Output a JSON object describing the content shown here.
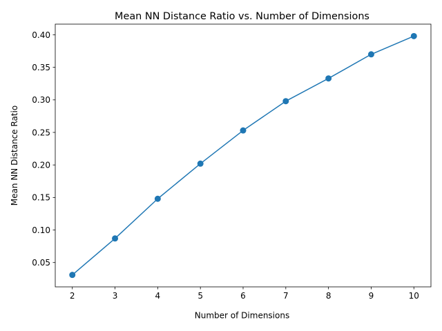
{
  "chart_data": {
    "type": "line",
    "title": "Mean NN Distance Ratio vs. Number of Dimensions",
    "xlabel": "Number of Dimensions",
    "ylabel": "Mean NN Distance Ratio",
    "x": [
      2,
      3,
      4,
      5,
      6,
      7,
      8,
      9,
      10
    ],
    "series": [
      {
        "values": [
          0.031,
          0.087,
          0.148,
          0.202,
          0.253,
          0.298,
          0.333,
          0.37,
          0.398
        ],
        "color": "#1f77b4",
        "marker": "circle"
      }
    ],
    "xticks": [
      "2",
      "3",
      "4",
      "5",
      "6",
      "7",
      "8",
      "9",
      "10"
    ],
    "yticks": [
      "0.05",
      "0.10",
      "0.15",
      "0.20",
      "0.25",
      "0.30",
      "0.35",
      "0.40"
    ],
    "xlim": [
      1.6,
      10.4
    ],
    "ylim": [
      0.0126,
      0.4164
    ],
    "grid": false,
    "legend": "none"
  }
}
